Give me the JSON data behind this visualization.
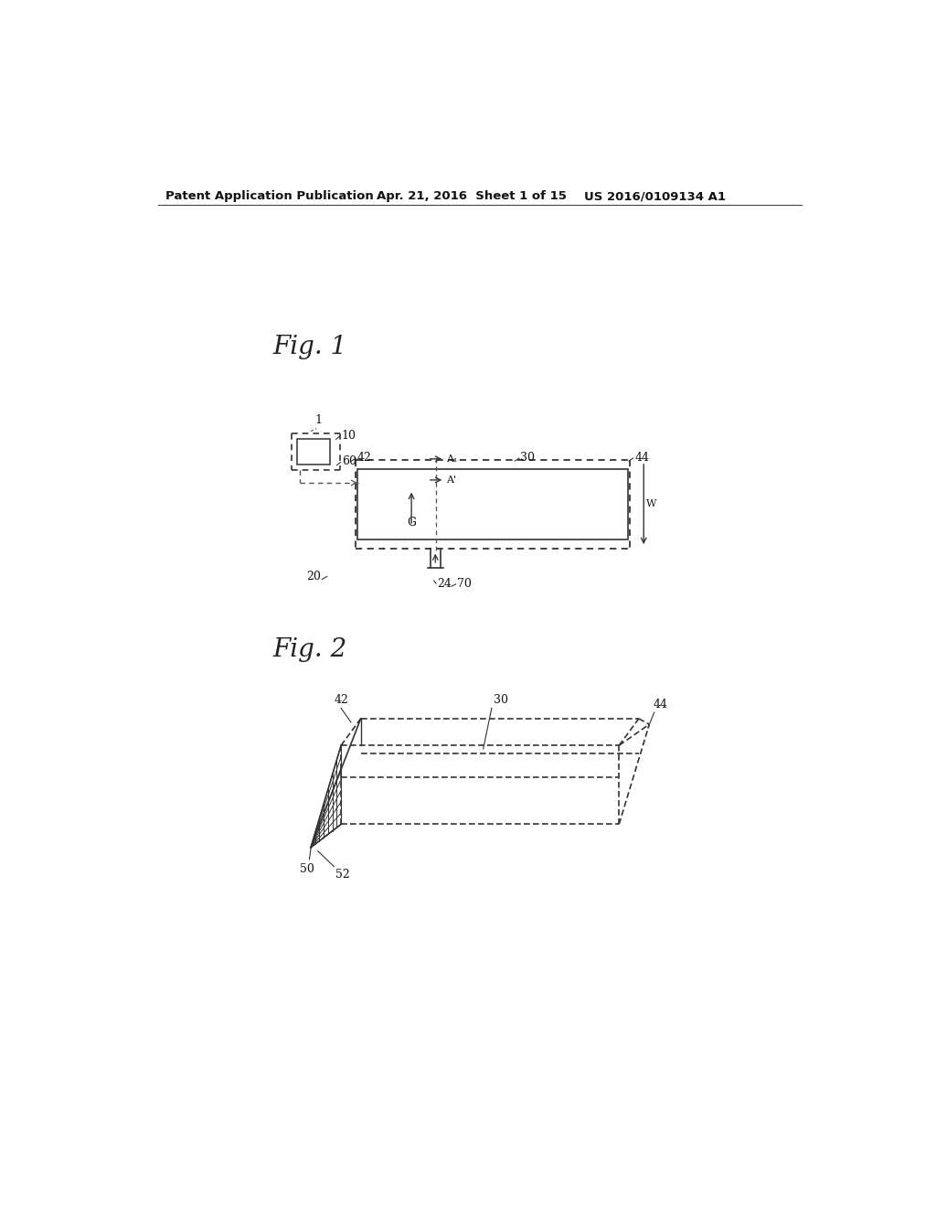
{
  "bg_color": "#ffffff",
  "header_left": "Patent Application Publication",
  "header_mid": "Apr. 21, 2016  Sheet 1 of 15",
  "header_right": "US 2016/0109134 A1",
  "fig1_label": "Fig. 1",
  "fig2_label": "Fig. 2",
  "lc": "#333333",
  "dc": "#555555"
}
